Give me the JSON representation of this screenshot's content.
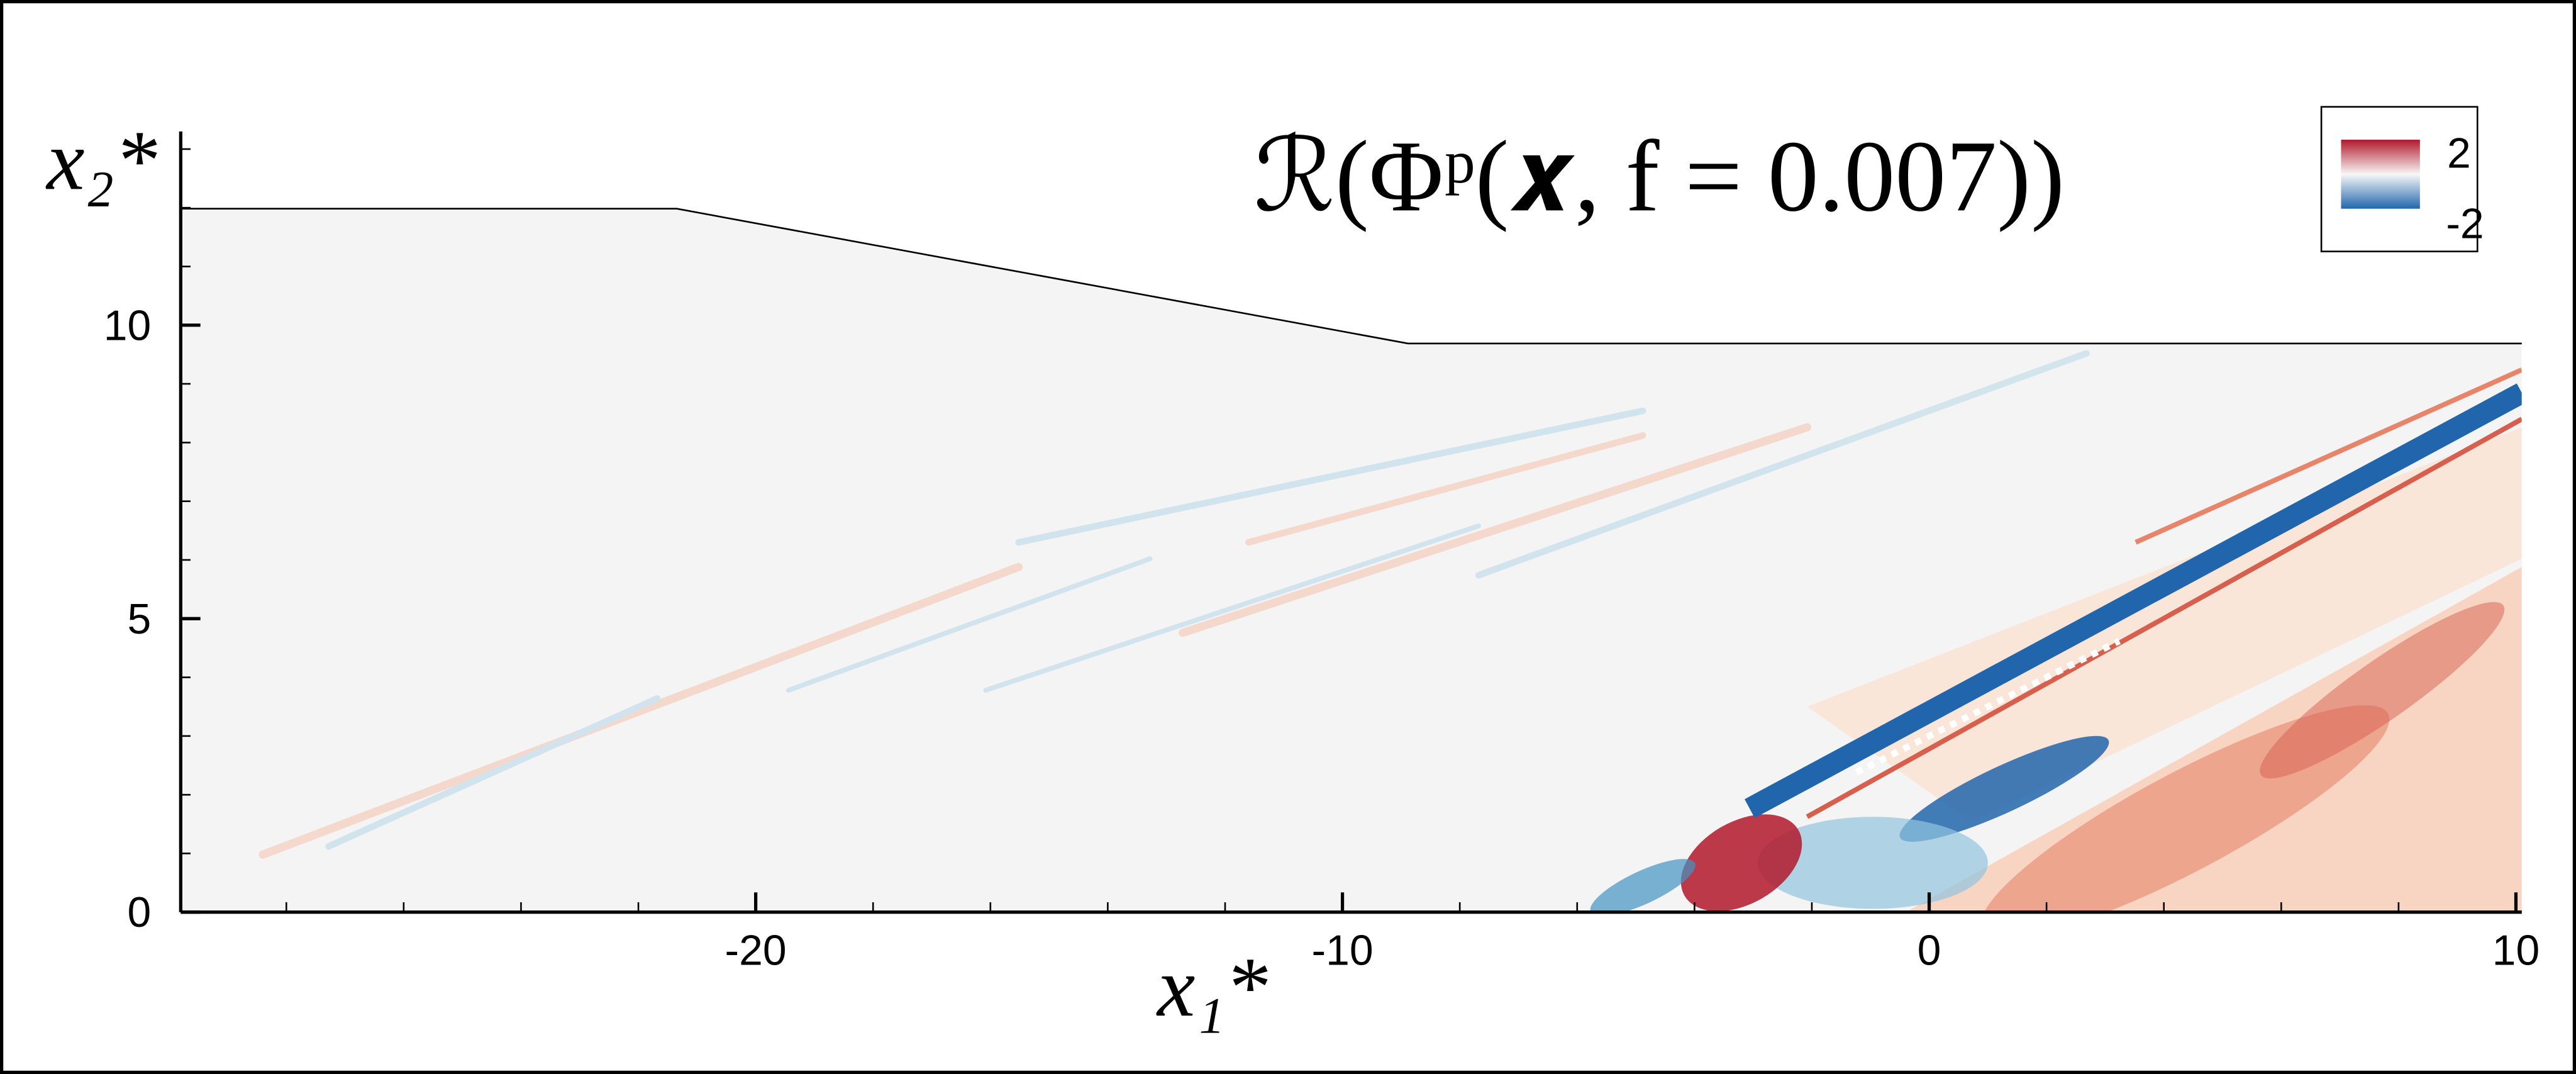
{
  "chart_data": {
    "type": "contour",
    "title": "ℛ(Φᵖ(𝒙, f = 0.007))",
    "x_label": "x₁*",
    "y_label": "x₂*",
    "xlim": [
      -29.8,
      10.1
    ],
    "ylim": [
      0,
      13.3
    ],
    "xticks": [
      -20,
      -10,
      0,
      10
    ],
    "yticks": [
      0,
      5,
      10
    ],
    "clim": [
      -2,
      2
    ],
    "colors": [
      "#2166ac",
      "#f7f7f7",
      "#b2182b"
    ]
  }
}
